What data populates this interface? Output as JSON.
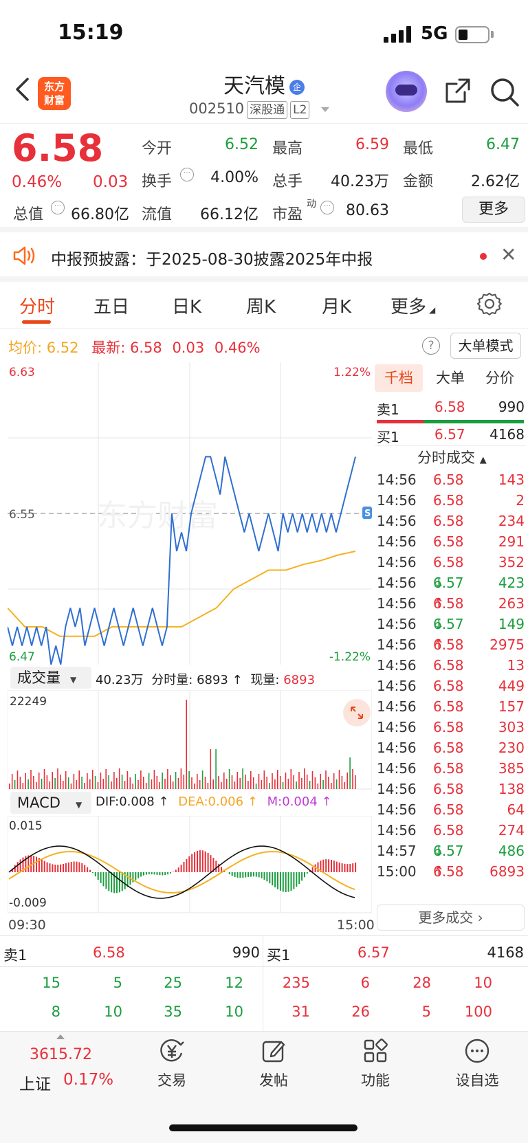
{
  "status": {
    "time": "15:19",
    "network": "5G"
  },
  "header": {
    "logo_line1": "东方",
    "logo_line2": "财富",
    "stock_name": "天汽模",
    "badge": "企",
    "code": "002510",
    "market_tag": "深股通",
    "level_tag": "L2"
  },
  "quote": {
    "price": "6.58",
    "change_pct": "0.46%",
    "change": "0.03",
    "open_label": "今开",
    "open": "6.52",
    "high_label": "最高",
    "high": "6.59",
    "low_label": "最低",
    "low": "6.47",
    "turnover_label": "换手",
    "turnover": "4.00%",
    "volume_label": "总手",
    "volume": "40.23万",
    "amount_label": "金额",
    "amount": "2.62亿",
    "mktcap_label": "总值",
    "mktcap": "66.80亿",
    "float_label": "流值",
    "float": "66.12亿",
    "pe_label": "市盈",
    "pe_sup": "动",
    "pe": "80.63",
    "more": "更多"
  },
  "notice": {
    "text": "中报预披露：于2025-08-30披露2025年中报"
  },
  "tabs": [
    "分时",
    "五日",
    "日K",
    "周K",
    "月K",
    "更多"
  ],
  "intraday": {
    "avg_label": "均价:",
    "avg": "6.52",
    "latest_label": "最新:",
    "latest": "6.58",
    "latest_chg": "0.03",
    "latest_pct": "0.46%",
    "mode_btn": "大单模式",
    "y_top": "6.63",
    "y_mid": "6.55",
    "y_bottom": "6.47",
    "pct_top": "1.22%",
    "pct_bottom": "-1.22%",
    "watermark": "东方财富",
    "x_start": "09:30",
    "x_end": "15:00"
  },
  "volume_panel": {
    "selector": "成交量",
    "total": "40.23万",
    "tick_label": "分时量:",
    "tick": "6893",
    "now_label": "现量:",
    "now": "6893",
    "max": "22249"
  },
  "macd_panel": {
    "selector": "MACD",
    "dif": "DIF:0.008 ↑",
    "dea": "DEA:0.006 ↑",
    "m": "M:0.004 ↑",
    "top": "0.015",
    "bottom": "-0.009"
  },
  "right_panel": {
    "tabs": [
      "千档",
      "大单",
      "分价"
    ],
    "sell1_label": "卖1",
    "sell1_price": "6.58",
    "sell1_vol": "990",
    "buy1_label": "买1",
    "buy1_price": "6.57",
    "buy1_vol": "4168",
    "trades_title": "分时成交",
    "trades": [
      {
        "t": "14:56",
        "p": "6.58",
        "v": "143",
        "c": "red",
        "a": ""
      },
      {
        "t": "14:56",
        "p": "6.58",
        "v": "2",
        "c": "red",
        "a": ""
      },
      {
        "t": "14:56",
        "p": "6.58",
        "v": "234",
        "c": "red",
        "a": ""
      },
      {
        "t": "14:56",
        "p": "6.58",
        "v": "291",
        "c": "red",
        "a": ""
      },
      {
        "t": "14:56",
        "p": "6.58",
        "v": "352",
        "c": "red",
        "a": ""
      },
      {
        "t": "14:56",
        "p": "6.57",
        "v": "423",
        "c": "green",
        "a": "↓"
      },
      {
        "t": "14:56",
        "p": "6.58",
        "v": "263",
        "c": "red",
        "a": "↑"
      },
      {
        "t": "14:56",
        "p": "6.57",
        "v": "149",
        "c": "green",
        "a": "↓"
      },
      {
        "t": "14:56",
        "p": "6.58",
        "v": "2975",
        "c": "red",
        "a": "↑"
      },
      {
        "t": "14:56",
        "p": "6.58",
        "v": "13",
        "c": "red",
        "a": ""
      },
      {
        "t": "14:56",
        "p": "6.58",
        "v": "449",
        "c": "red",
        "a": ""
      },
      {
        "t": "14:56",
        "p": "6.58",
        "v": "157",
        "c": "red",
        "a": ""
      },
      {
        "t": "14:56",
        "p": "6.58",
        "v": "303",
        "c": "red",
        "a": ""
      },
      {
        "t": "14:56",
        "p": "6.58",
        "v": "230",
        "c": "red",
        "a": ""
      },
      {
        "t": "14:56",
        "p": "6.58",
        "v": "385",
        "c": "red",
        "a": ""
      },
      {
        "t": "14:56",
        "p": "6.58",
        "v": "138",
        "c": "red",
        "a": ""
      },
      {
        "t": "14:56",
        "p": "6.58",
        "v": "64",
        "c": "red",
        "a": ""
      },
      {
        "t": "14:56",
        "p": "6.58",
        "v": "274",
        "c": "red",
        "a": ""
      },
      {
        "t": "14:57",
        "p": "6.57",
        "v": "486",
        "c": "green",
        "a": "↓"
      },
      {
        "t": "15:00",
        "p": "6.58",
        "v": "6893",
        "c": "red",
        "a": "↑"
      }
    ],
    "more_trades": "更多成交"
  },
  "orderbook": {
    "sell1_label": "卖1",
    "sell1_price": "6.58",
    "sell1_vol": "990",
    "buy1_label": "买1",
    "buy1_price": "6.57",
    "buy1_vol": "4168",
    "sell_row1": [
      "15",
      "5",
      "25",
      "12"
    ],
    "sell_row2": [
      "8",
      "10",
      "35",
      "10"
    ],
    "buy_row1": [
      "235",
      "6",
      "28",
      "10"
    ],
    "buy_row2": [
      "31",
      "26",
      "5",
      "100"
    ]
  },
  "bottom_nav": {
    "index_value": "3615.72",
    "index_name": "上证",
    "index_pct": "0.17%",
    "items": [
      "交易",
      "发帖",
      "功能",
      "设自选"
    ]
  },
  "colors": {
    "up": "#e8303a",
    "down": "#1b9e3e",
    "accent": "#e8481a",
    "price_line": "#2f6fd1",
    "avg_line": "#f5b11e"
  }
}
